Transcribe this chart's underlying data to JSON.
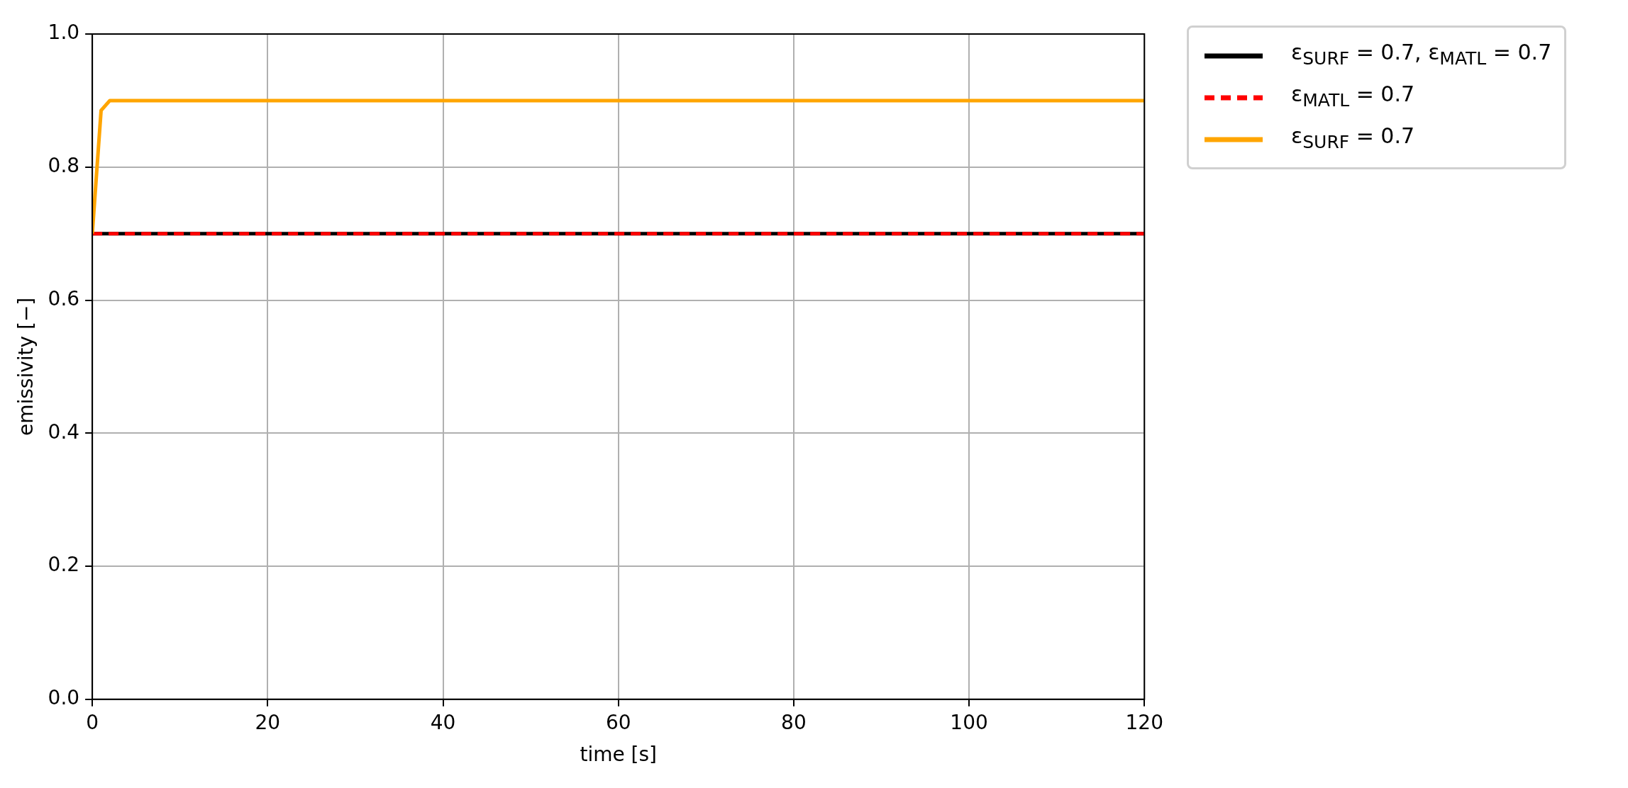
{
  "chart_data": {
    "type": "line",
    "xlabel": "time [s]",
    "ylabel": "emissivity [−]",
    "xlim": [
      0,
      120
    ],
    "xticks": [
      0,
      20,
      40,
      60,
      80,
      100,
      120
    ],
    "ylim": [
      0,
      1
    ],
    "yticks": [
      {
        "value": 0,
        "label": "0.0"
      },
      0.2,
      0.4,
      0.6,
      0.8,
      {
        "value": 1,
        "label": "1.0"
      }
    ],
    "grid": true,
    "legend": "top right",
    "series": [
      {
        "name": "ε$_{SURF}$ = 0.7, ε$_{MATL}$ = 0.7",
        "color": "#000000",
        "line_style": "solid",
        "x": [
          0,
          120
        ],
        "values": [
          0.7,
          0.7
        ]
      },
      {
        "name": "ε$_{MATL}$ = 0.7",
        "color": "#ff0000",
        "line_style": "dashed",
        "x": [
          0,
          120
        ],
        "values": [
          0.7,
          0.7
        ]
      },
      {
        "name": "ε$_{SURF}$ = 0.7",
        "color": "#ffa500",
        "line_style": "solid",
        "x": [
          0,
          1,
          2,
          120
        ],
        "values": [
          0.7,
          0.885,
          0.9,
          0.9
        ]
      }
    ]
  }
}
